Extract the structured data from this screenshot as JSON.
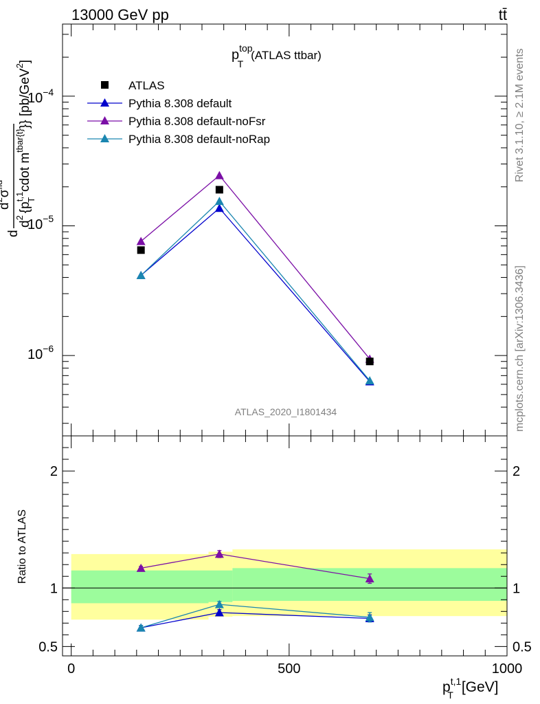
{
  "header": {
    "left": "13000 GeV pp",
    "right": "tt̄"
  },
  "side_labels": {
    "rivet": "Rivet 3.1.10, ≥ 2.1M events",
    "mcplots": "mcplots.cern.ch [arXiv:1306.3436]"
  },
  "chart_data": [
    {
      "type": "scatter",
      "panel": "main",
      "title_main": "p",
      "title_sup": "top",
      "title_sub": "T",
      "title_rest": "(ATLAS ttbar)",
      "ylabel": "d²σ^{fid} / d² {p_T^{t,1} cdot m^{tbar{t}}} [pb/GeV²]",
      "ylabel_parts": {
        "num": "d",
        "num_sig": "σ",
        "num_sup": "2",
        "num_sup2": "fid",
        "den": "d",
        "den_sup": "2",
        "den_body": "{p",
        "den_sub": "T",
        "den_sup2": "t,1",
        "den_mid": "cdot m",
        "den_sup3": "tbar{t}",
        "den_close": "}}",
        "unit": "}} [pb/GeV",
        "unit_sup": "2",
        "unit_close": "]"
      },
      "yscale": "log",
      "ylim": [
        2.4e-07,
        0.00036
      ],
      "xlim": [
        -20,
        1000
      ],
      "ytick_labels": [
        "10",
        "10",
        "10"
      ],
      "ytick_exponents": [
        "−4",
        "−5",
        "−6"
      ],
      "ytick_values": [
        0.0001,
        1e-05,
        1e-06
      ],
      "watermark": "ATLAS_2020_I1801434",
      "legend_position": "top-left",
      "series": [
        {
          "name": "ATLAS",
          "marker": "square",
          "color": "#000000",
          "x": [
            160,
            340,
            685
          ],
          "y": [
            6.5e-06,
            1.9e-05,
            9e-07
          ]
        },
        {
          "name": "Pythia 8.308 default",
          "marker": "triangle",
          "color": "#0000cc",
          "x": [
            160,
            340,
            685
          ],
          "y": [
            4.15e-06,
            1.37e-05,
            6.3e-07
          ]
        },
        {
          "name": "Pythia 8.308 default-noFsr",
          "marker": "triangle",
          "color": "#7b0fa6",
          "x": [
            160,
            340,
            685
          ],
          "y": [
            7.6e-06,
            2.45e-05,
            9.4e-07
          ]
        },
        {
          "name": "Pythia 8.308 default-noRap",
          "marker": "triangle",
          "color": "#1a86b0",
          "x": [
            160,
            340,
            685
          ],
          "y": [
            4.15e-06,
            1.55e-05,
            6.4e-07
          ]
        }
      ]
    },
    {
      "type": "line",
      "panel": "ratio",
      "ylabel": "Ratio to ATLAS",
      "xlabel": "p",
      "xlabel_sup": "t,1",
      "xlabel_sub": "T",
      "xlabel_unit": "[GeV]",
      "ylim": [
        0.42,
        2.3
      ],
      "xlim": [
        -20,
        1000
      ],
      "x_tick_labels": [
        "0",
        "500",
        "1000"
      ],
      "x_tick_values": [
        0,
        500,
        1000
      ],
      "y_tick_labels": [
        "0.5",
        "1",
        "2"
      ],
      "y_tick_values": [
        0.5,
        1,
        2
      ],
      "reference": 1.0,
      "bands": {
        "yellow": [
          {
            "x0": 0,
            "x1": 315,
            "low": 0.73,
            "high": 1.29
          },
          {
            "x0": 315,
            "x1": 370,
            "low": 0.755,
            "high": 1.31
          },
          {
            "x0": 370,
            "x1": 1000,
            "low": 0.76,
            "high": 1.33
          }
        ],
        "green": [
          {
            "x0": 0,
            "x1": 315,
            "low": 0.87,
            "high": 1.15
          },
          {
            "x0": 315,
            "x1": 370,
            "low": 0.88,
            "high": 1.15
          },
          {
            "x0": 370,
            "x1": 1000,
            "low": 0.89,
            "high": 1.17
          }
        ]
      },
      "series": [
        {
          "name": "Pythia 8.308 default",
          "color": "#0000cc",
          "x": [
            160,
            340,
            685
          ],
          "y": [
            0.66,
            0.79,
            0.74
          ],
          "err": [
            0.02,
            0.025,
            0.03
          ]
        },
        {
          "name": "Pythia 8.308 default-noFsr",
          "color": "#7b0fa6",
          "x": [
            160,
            340,
            685
          ],
          "y": [
            1.17,
            1.29,
            1.08
          ],
          "err": [
            0.015,
            0.03,
            0.04
          ]
        },
        {
          "name": "Pythia 8.308 default-noRap",
          "color": "#1a86b0",
          "x": [
            160,
            340,
            685
          ],
          "y": [
            0.66,
            0.86,
            0.75
          ],
          "err": [
            0.02,
            0.025,
            0.04
          ]
        }
      ]
    }
  ]
}
